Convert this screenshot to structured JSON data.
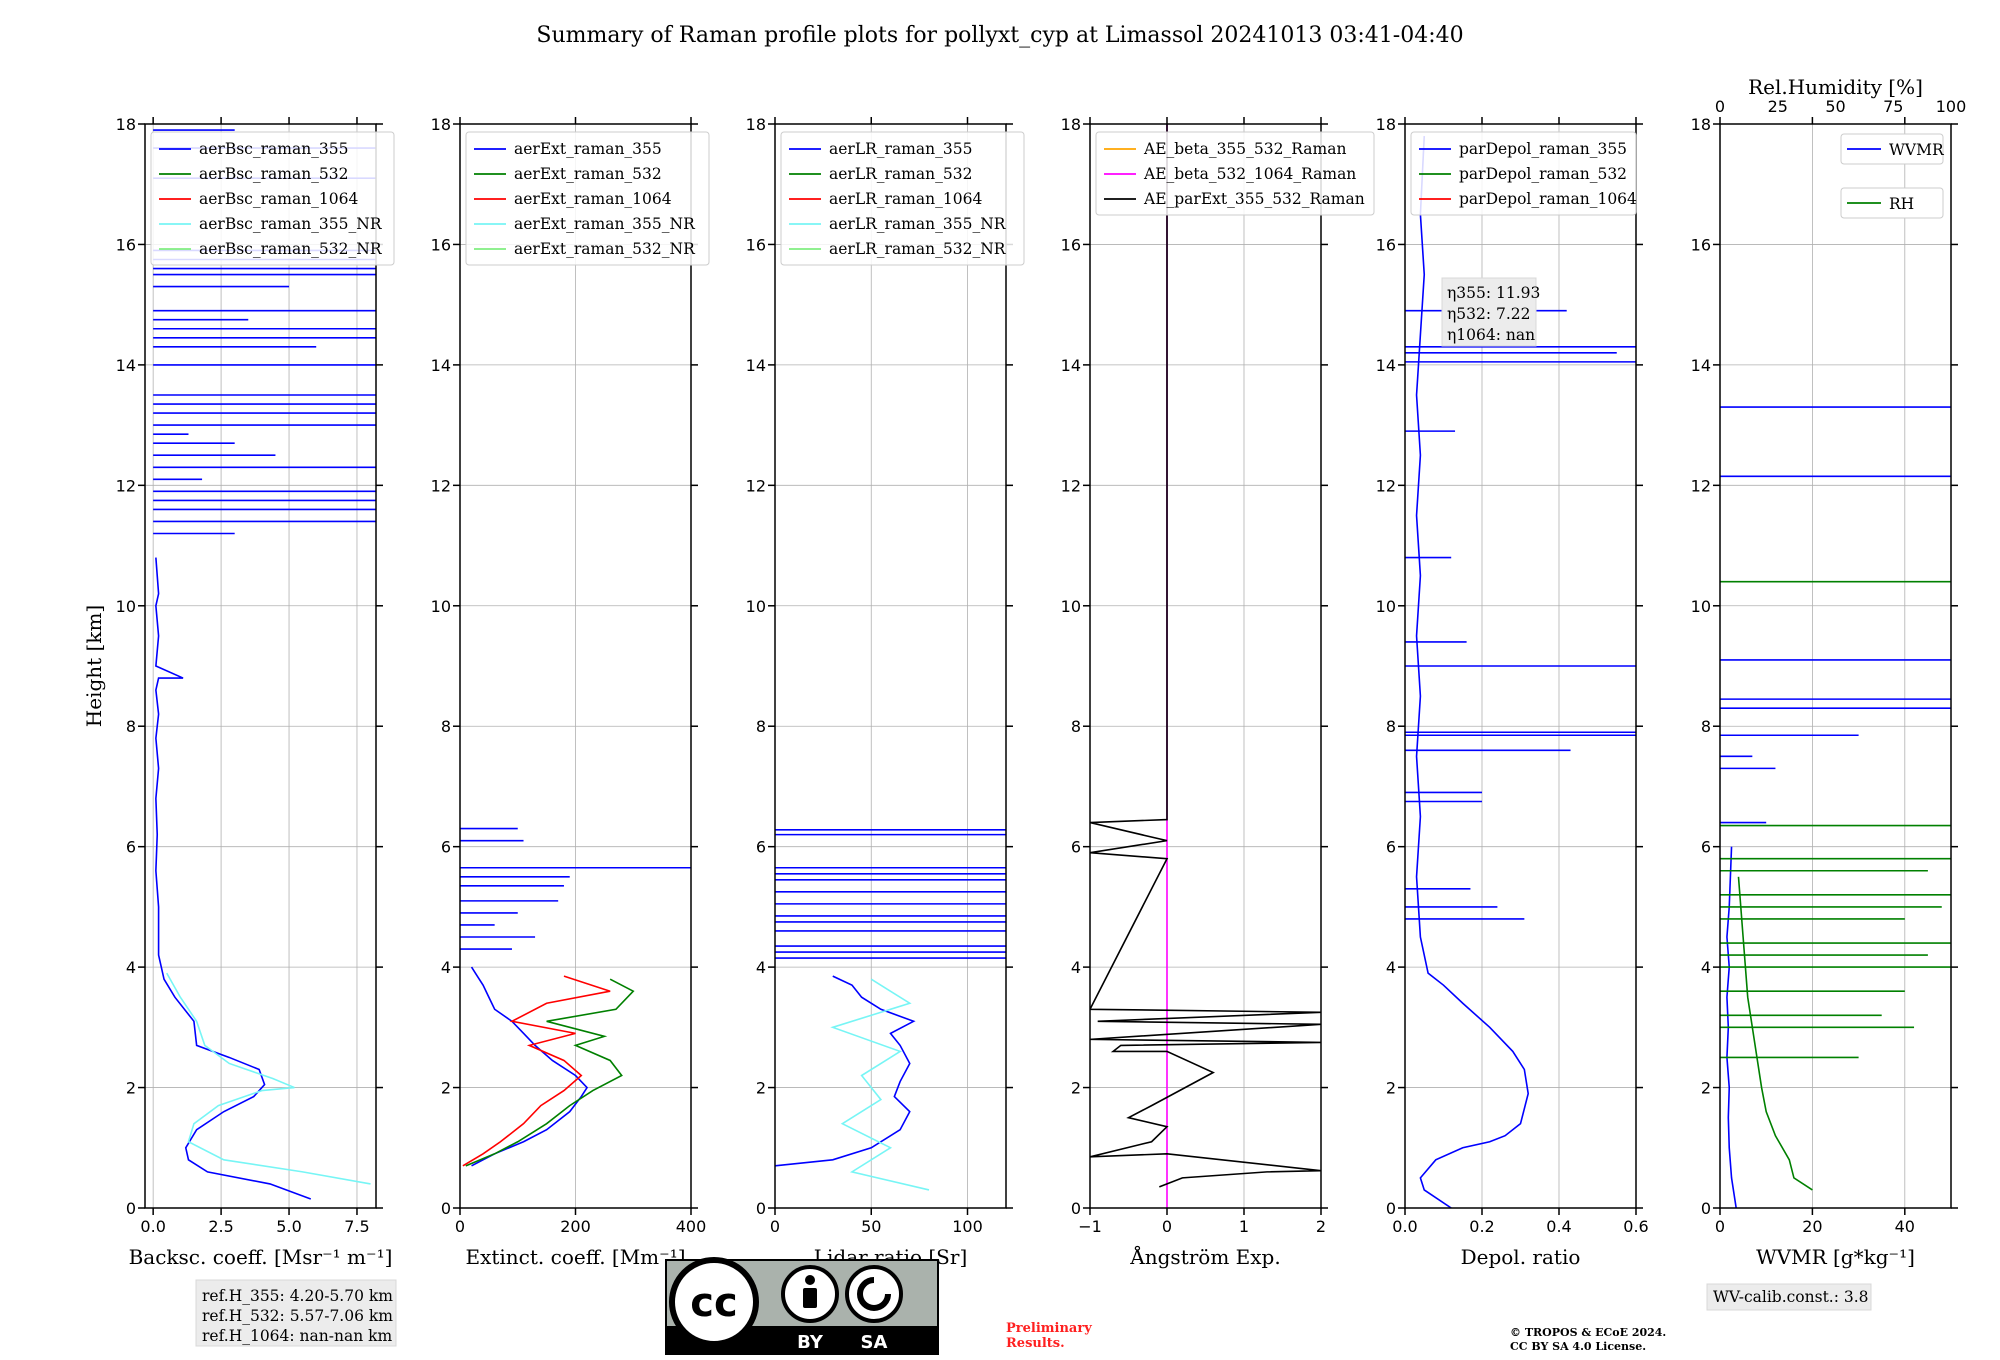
{
  "figure": {
    "title": "Summary of Raman profile plots for pollyxt_cyp at Limassol 20241013 03:41-04:40",
    "ref_box": [
      "ref.H_355: 4.20-5.70 km",
      "ref.H_532: 5.57-7.06 km",
      "ref.H_1064: nan-nan km"
    ],
    "wv_calib": "WV-calib.const.: 3.8",
    "prelim": [
      "Preliminary",
      "Results."
    ],
    "copyright": [
      "© TROPOS & ECoE 2024.",
      "CC BY SA 4.0 License."
    ],
    "eta_box": [
      "η355: 11.93",
      "η532: 7.22",
      "η1064: nan"
    ],
    "license_badge": {
      "cc": "cc",
      "by": "BY",
      "sa": "SA"
    }
  },
  "chart_data": [
    {
      "type": "line",
      "id": "bsc",
      "xlabel": "Backsc. coeff. [Msr⁻¹ m⁻¹]",
      "ylabel": "Height [km]",
      "xlim": [
        -0.3,
        8.2
      ],
      "ylim": [
        0,
        18
      ],
      "xticks": [
        0,
        2.5,
        5,
        7.5
      ],
      "xticklabels": [
        "0.0",
        "2.5",
        "5.0",
        "7.5"
      ],
      "yticks": [
        0,
        2,
        4,
        6,
        8,
        10,
        12,
        14,
        16,
        18
      ],
      "grid": true,
      "legend_position": "top-left",
      "series": [
        {
          "name": "aerBsc_raman_355",
          "color": "#0000ff",
          "x": [
            5.8,
            4.3,
            2.0,
            1.3,
            1.2,
            1.6,
            2.6,
            3.7,
            4.1,
            3.9,
            2.8,
            1.6,
            1.5,
            0.8,
            0.4,
            0.2,
            0.2,
            0.1,
            0.15,
            0.1,
            0.2,
            0.1,
            0.2,
            0.1,
            0.2,
            1.1,
            0.1,
            0.2,
            0.1,
            0.2,
            0.1
          ],
          "y": [
            0.15,
            0.4,
            0.6,
            0.8,
            1.0,
            1.3,
            1.6,
            1.85,
            2.05,
            2.3,
            2.5,
            2.7,
            3.1,
            3.5,
            3.8,
            4.2,
            5,
            5.6,
            6.2,
            6.8,
            7.3,
            7.8,
            8.2,
            8.6,
            8.8,
            8.8,
            9.0,
            9.5,
            10,
            10.2,
            10.8
          ]
        },
        {
          "name": "aerBsc_raman_532",
          "color": "#008000",
          "x": [],
          "y": []
        },
        {
          "name": "aerBsc_raman_1064",
          "color": "#ff0000",
          "x": [],
          "y": []
        },
        {
          "name": "aerBsc_raman_355_NR",
          "color": "#77f5f5",
          "x": [
            8.0,
            5.5,
            2.6,
            1.3,
            1.5,
            2.4,
            4.0,
            5.2,
            4.4,
            2.8,
            1.9,
            1.6,
            1.0,
            0.5
          ],
          "y": [
            0.4,
            0.6,
            0.8,
            1.1,
            1.4,
            1.7,
            1.95,
            2.0,
            2.15,
            2.4,
            2.7,
            3.1,
            3.5,
            3.9
          ]
        },
        {
          "name": "aerBsc_raman_532_NR",
          "color": "#80ee80",
          "x": [],
          "y": []
        }
      ],
      "spikes": {
        "color": "#0000ff",
        "heights": [
          11.2,
          11.4,
          11.6,
          11.75,
          11.9,
          12.1,
          12.3,
          12.5,
          12.7,
          12.85,
          13.0,
          13.2,
          13.35,
          13.5,
          14.0,
          14.3,
          14.45,
          14.6,
          14.75,
          14.9,
          15.3,
          15.5,
          15.6,
          15.75,
          15.9,
          17.1,
          17.6,
          17.9
        ],
        "values": [
          3.0,
          8.2,
          8.2,
          8.2,
          8.2,
          1.8,
          8.2,
          4.5,
          3.0,
          1.3,
          8.2,
          8.2,
          8.2,
          8.2,
          8.2,
          6.0,
          8.2,
          8.2,
          3.5,
          8.2,
          5.0,
          8.2,
          8.2,
          8.2,
          8.2,
          8.2,
          8.2,
          3.0
        ]
      }
    },
    {
      "type": "line",
      "id": "ext",
      "xlabel": "Extinct. coeff. [Mm⁻¹]",
      "xlim": [
        0,
        400
      ],
      "ylim": [
        0,
        18
      ],
      "xticks": [
        0,
        200,
        400
      ],
      "xticklabels": [
        "0",
        "200",
        "400"
      ],
      "yticks": [
        0,
        2,
        4,
        6,
        8,
        10,
        12,
        14,
        16,
        18
      ],
      "grid": true,
      "legend_position": "top-left",
      "series": [
        {
          "name": "aerExt_raman_355",
          "color": "#0000ff",
          "x": [
            20,
            60,
            110,
            150,
            190,
            210,
            220,
            200,
            160,
            130,
            110,
            90,
            60,
            50,
            40,
            30,
            20
          ],
          "y": [
            0.7,
            0.9,
            1.1,
            1.3,
            1.6,
            1.85,
            2.0,
            2.2,
            2.45,
            2.7,
            2.9,
            3.1,
            3.3,
            3.5,
            3.7,
            3.85,
            4.0
          ]
        },
        {
          "name": "aerExt_raman_532",
          "color": "#008000",
          "x": [
            10,
            60,
            100,
            150,
            190,
            230,
            280,
            260,
            200,
            250,
            150,
            270,
            300,
            260
          ],
          "y": [
            0.7,
            0.9,
            1.1,
            1.4,
            1.7,
            1.95,
            2.2,
            2.45,
            2.7,
            2.85,
            3.1,
            3.3,
            3.6,
            3.8
          ]
        },
        {
          "name": "aerExt_raman_1064",
          "color": "#ff0000",
          "x": [
            5,
            40,
            70,
            110,
            140,
            180,
            210,
            180,
            120,
            200,
            90,
            150,
            260,
            180
          ],
          "y": [
            0.7,
            0.9,
            1.1,
            1.4,
            1.7,
            1.95,
            2.2,
            2.45,
            2.7,
            2.9,
            3.1,
            3.4,
            3.6,
            3.85
          ]
        },
        {
          "name": "aerExt_raman_355_NR",
          "color": "#77f5f5",
          "x": [],
          "y": []
        },
        {
          "name": "aerExt_raman_532_NR",
          "color": "#80ee80",
          "x": [],
          "y": []
        }
      ],
      "spikes": {
        "color": "#0000ff",
        "heights": [
          4.3,
          4.5,
          4.7,
          4.9,
          5.1,
          5.35,
          5.5,
          5.65,
          6.1,
          6.3
        ],
        "values": [
          90,
          130,
          60,
          100,
          170,
          180,
          190,
          400,
          110,
          100
        ]
      }
    },
    {
      "type": "line",
      "id": "lr",
      "xlabel": "Lidar ratio [Sr]",
      "xlim": [
        0,
        120
      ],
      "ylim": [
        0,
        18
      ],
      "xticks": [
        0,
        50,
        100
      ],
      "xticklabels": [
        "0",
        "50",
        "100"
      ],
      "yticks": [
        0,
        2,
        4,
        6,
        8,
        10,
        12,
        14,
        16,
        18
      ],
      "grid": true,
      "legend_position": "top-left",
      "series": [
        {
          "name": "aerLR_raman_355",
          "color": "#0000ff",
          "x": [
            0,
            30,
            50,
            65,
            70,
            62,
            65,
            70,
            65,
            60,
            72,
            55,
            45,
            40,
            30
          ],
          "y": [
            0.7,
            0.8,
            1.0,
            1.3,
            1.6,
            1.85,
            2.1,
            2.4,
            2.7,
            2.9,
            3.1,
            3.3,
            3.5,
            3.7,
            3.85
          ]
        },
        {
          "name": "aerLR_raman_532",
          "color": "#008000",
          "x": [],
          "y": []
        },
        {
          "name": "aerLR_raman_1064",
          "color": "#ff0000",
          "x": [],
          "y": []
        },
        {
          "name": "aerLR_raman_355_NR",
          "color": "#77f5f5",
          "x": [
            80,
            40,
            60,
            35,
            55,
            45,
            65,
            30,
            70,
            50
          ],
          "y": [
            0.3,
            0.6,
            1.0,
            1.4,
            1.8,
            2.2,
            2.6,
            3.0,
            3.4,
            3.8
          ]
        },
        {
          "name": "aerLR_raman_532_NR",
          "color": "#80ee80",
          "x": [],
          "y": []
        }
      ],
      "spikes": {
        "color": "#0000ff",
        "heights": [
          4.15,
          4.25,
          4.35,
          4.6,
          4.75,
          4.85,
          5.05,
          5.25,
          5.45,
          5.55,
          5.65,
          6.2,
          6.28
        ],
        "values": [
          120,
          120,
          120,
          120,
          120,
          120,
          120,
          120,
          120,
          120,
          120,
          120,
          120
        ]
      }
    },
    {
      "type": "line",
      "id": "ae",
      "xlabel": "Ångström Exp.",
      "xlim": [
        -1,
        2
      ],
      "ylim": [
        0,
        18
      ],
      "xticks": [
        -1,
        0,
        1,
        2
      ],
      "xticklabels": [
        "−1",
        "0",
        "1",
        "2"
      ],
      "yticks": [
        0,
        2,
        4,
        6,
        8,
        10,
        12,
        14,
        16,
        18
      ],
      "grid": true,
      "legend_position": "top-left",
      "series": [
        {
          "name": "AE_beta_355_532_Raman",
          "color": "#ffa500",
          "x": [],
          "y": []
        },
        {
          "name": "AE_beta_532_1064_Raman",
          "color": "#ff00ff",
          "x": [
            0,
            0
          ],
          "y": [
            0,
            18
          ]
        },
        {
          "name": "AE_parExt_355_532_Raman",
          "color": "#000000",
          "x": [
            -0.1,
            0.2,
            1.3,
            2.0,
            0.0,
            -1.0,
            -0.2,
            0.0,
            -0.5,
            -0.2,
            0.6,
            0.0,
            -0.7,
            -0.6,
            2.0,
            -1.0,
            2.0,
            -0.9,
            2.0,
            -1.0,
            0.0,
            -1.0,
            0.0,
            -1.0,
            0.0,
            0.0
          ],
          "y": [
            0.35,
            0.5,
            0.6,
            0.62,
            0.9,
            0.85,
            1.1,
            1.35,
            1.5,
            1.7,
            2.25,
            2.6,
            2.6,
            2.7,
            2.75,
            2.8,
            3.05,
            3.1,
            3.25,
            3.3,
            5.8,
            5.9,
            6.1,
            6.4,
            6.45,
            18
          ]
        }
      ]
    },
    {
      "type": "line",
      "id": "depol",
      "xlabel": "Depol. ratio",
      "xlim": [
        0,
        0.6
      ],
      "ylim": [
        0,
        18
      ],
      "xticks": [
        0,
        0.2,
        0.4,
        0.6
      ],
      "xticklabels": [
        "0.0",
        "0.2",
        "0.4",
        "0.6"
      ],
      "yticks": [
        0,
        2,
        4,
        6,
        8,
        10,
        12,
        14,
        16,
        18
      ],
      "grid": true,
      "legend_position": "top-left",
      "series": [
        {
          "name": "parDepol_raman_355",
          "color": "#0000ff",
          "x": [
            0.12,
            0.05,
            0.04,
            0.08,
            0.15,
            0.22,
            0.26,
            0.3,
            0.32,
            0.31,
            0.28,
            0.22,
            0.15,
            0.1,
            0.06,
            0.04,
            0.03,
            0.04,
            0.03,
            0.04,
            0.03,
            0.04,
            0.03,
            0.04,
            0.03,
            0.04,
            0.05,
            0.04,
            0.05
          ],
          "y": [
            0,
            0.3,
            0.5,
            0.8,
            1.0,
            1.1,
            1.2,
            1.4,
            1.9,
            2.3,
            2.6,
            3.0,
            3.4,
            3.7,
            3.9,
            4.5,
            5.5,
            6.5,
            7.5,
            8.5,
            9.5,
            10.5,
            11.5,
            12.5,
            13.5,
            14.5,
            15.5,
            16.5,
            17.8
          ]
        },
        {
          "name": "parDepol_raman_532",
          "color": "#008000",
          "x": [],
          "y": []
        },
        {
          "name": "parDepol_raman_1064",
          "color": "#ff0000",
          "x": [],
          "y": []
        }
      ],
      "spikes": {
        "color": "#0000ff",
        "heights": [
          4.8,
          5.0,
          5.3,
          6.75,
          6.9,
          7.6,
          7.85,
          7.9,
          9.0,
          9.4,
          10.8,
          12.9,
          14.05,
          14.2,
          14.3,
          14.9
        ],
        "values": [
          0.31,
          0.24,
          0.17,
          0.2,
          0.2,
          0.43,
          0.6,
          0.6,
          0.6,
          0.16,
          0.12,
          0.13,
          0.6,
          0.55,
          0.6,
          0.42
        ]
      }
    },
    {
      "type": "line",
      "id": "wv",
      "xlabel": "WVMR [g*kg⁻¹]",
      "xlabel_top": "Rel.Humidity [%]",
      "xlim": [
        0,
        50
      ],
      "xlim_top": [
        0,
        100
      ],
      "ylim": [
        0,
        18
      ],
      "xticks": [
        0,
        20,
        40
      ],
      "xticklabels": [
        "0",
        "20",
        "40"
      ],
      "xticks_top": [
        0,
        25,
        50,
        75,
        100
      ],
      "xticklabels_top": [
        "0",
        "25",
        "50",
        "75",
        "100"
      ],
      "yticks": [
        0,
        2,
        4,
        6,
        8,
        10,
        12,
        14,
        16,
        18
      ],
      "grid": true,
      "legend_position": "top-right",
      "series": [
        {
          "name": "WVMR",
          "color": "#0000ff",
          "x": [
            3.5,
            2.5,
            2.0,
            1.8,
            2.0,
            1.5,
            1.8,
            1.5,
            2.0,
            1.5,
            2.0,
            2.5
          ],
          "y": [
            0,
            0.5,
            1.0,
            1.5,
            2.0,
            2.5,
            3.0,
            3.5,
            4.0,
            4.5,
            5.0,
            6.0
          ]
        },
        {
          "name": "RH",
          "color": "#008000",
          "x": [
            20,
            16,
            15,
            12,
            10,
            9,
            8,
            7,
            6,
            5,
            4
          ],
          "y": [
            0.3,
            0.5,
            0.8,
            1.2,
            1.6,
            2.0,
            2.5,
            3.0,
            3.5,
            4.5,
            5.5
          ]
        }
      ],
      "spikes": {
        "color": "#0000ff",
        "heights": [
          6.4,
          7.3,
          7.5,
          7.85,
          8.3,
          8.45,
          9.1,
          12.15,
          13.3
        ],
        "values": [
          10,
          12,
          7,
          30,
          50,
          50,
          50,
          50,
          50
        ]
      },
      "spikes_green": {
        "color": "#008000",
        "heights": [
          2.5,
          3.0,
          3.2,
          3.6,
          4.0,
          4.2,
          4.4,
          4.8,
          5.0,
          5.2,
          5.6,
          5.8,
          6.35,
          10.4
        ],
        "values": [
          30,
          42,
          35,
          40,
          50,
          45,
          50,
          40,
          48,
          50,
          45,
          50,
          50,
          50
        ]
      }
    }
  ]
}
